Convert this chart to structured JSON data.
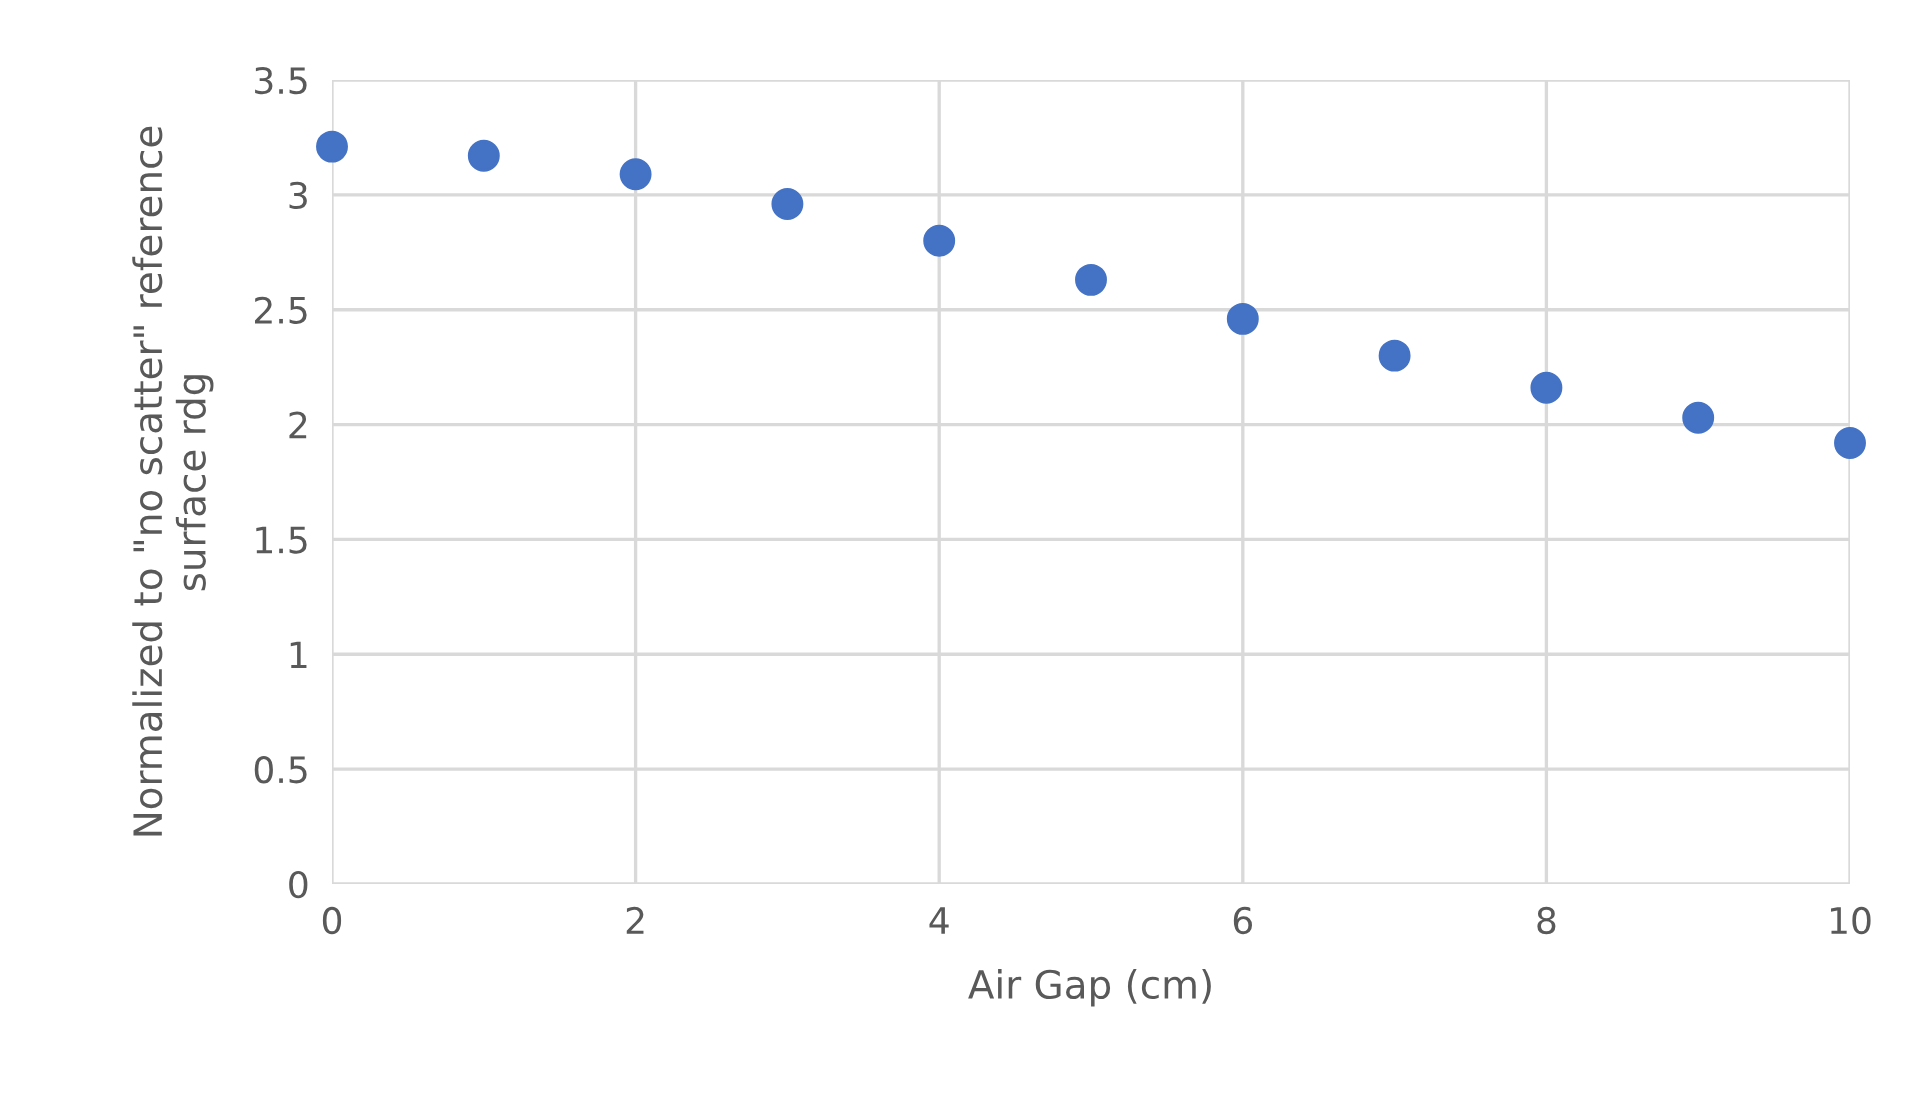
{
  "chart_data": {
    "type": "scatter",
    "xlabel": "Air Gap (cm)",
    "ylabel": "Normalized to \"no scatter\" reference\nsurface rdg",
    "x": [
      0,
      1,
      2,
      3,
      4,
      5,
      6,
      7,
      8,
      9,
      10
    ],
    "values": [
      3.21,
      3.17,
      3.09,
      2.96,
      2.8,
      2.63,
      2.46,
      2.3,
      2.16,
      2.03,
      1.92
    ],
    "color": "#4472c4",
    "marker": "circle",
    "xlim": [
      0,
      10
    ],
    "xticks": [
      0,
      2,
      4,
      6,
      8,
      10
    ],
    "ylim": [
      0,
      3.5
    ],
    "yticks": [
      0,
      0.5,
      1,
      1.5,
      2,
      2.5,
      3,
      3.5
    ],
    "grid": true
  }
}
